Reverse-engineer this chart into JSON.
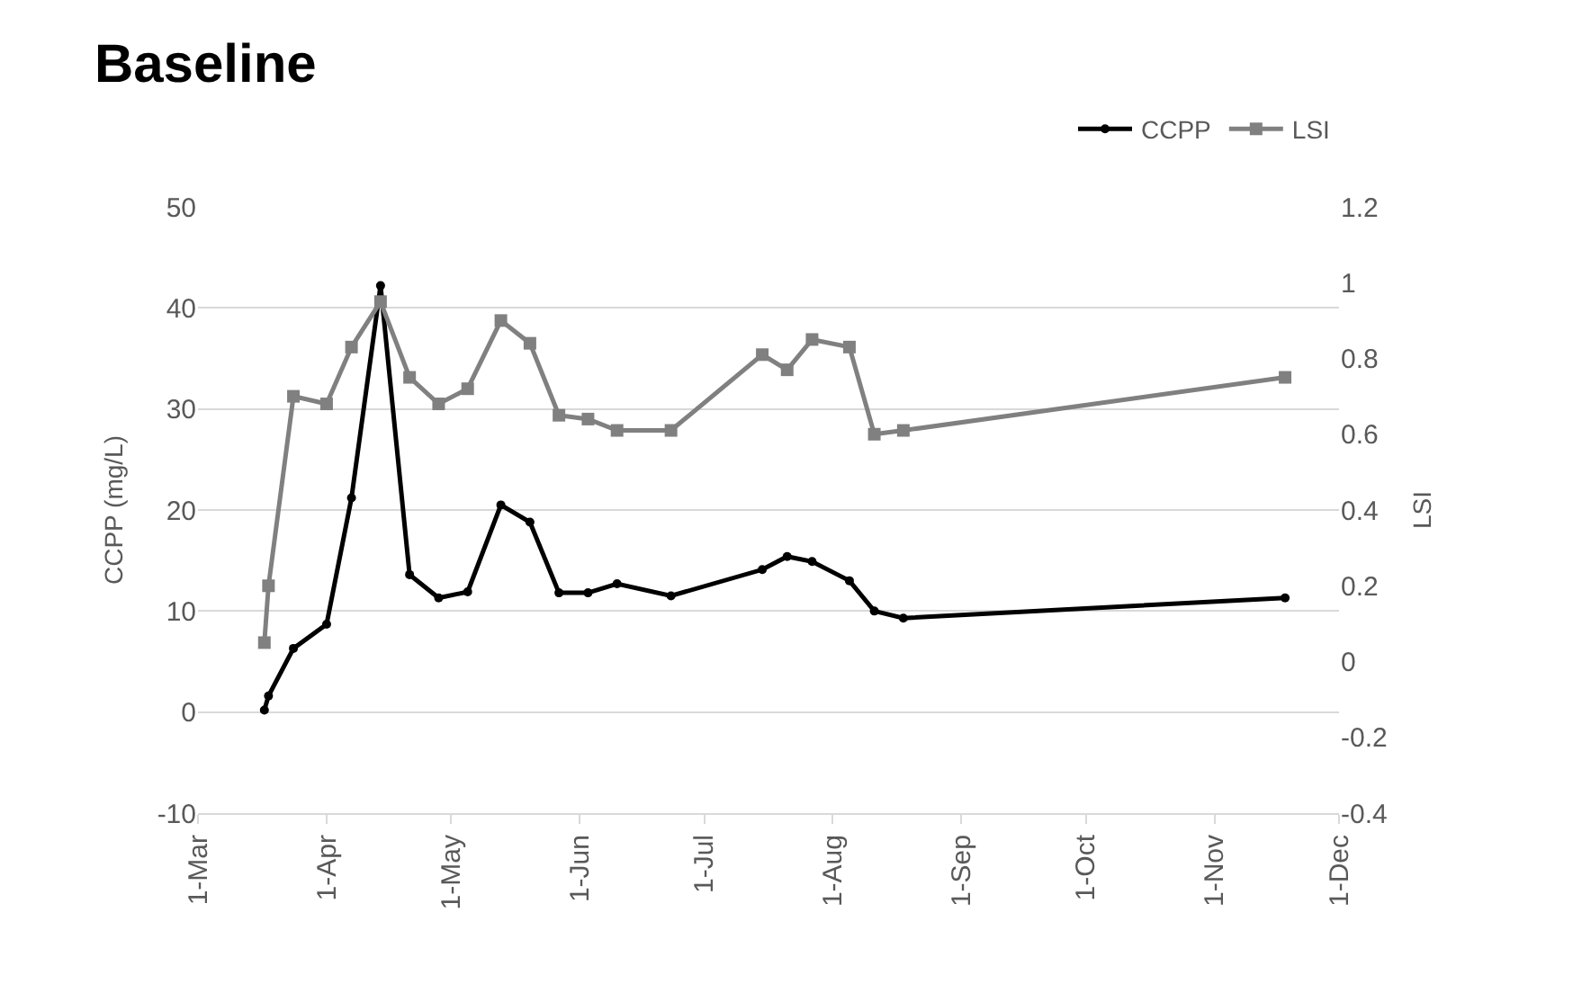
{
  "chart_data": {
    "type": "line",
    "title": "Baseline",
    "ylabel": "CCPP (mg/L)",
    "y2label": "LSI",
    "x": [
      "--03-17",
      "--03-18",
      "--03-24",
      "--04-01",
      "--04-07",
      "--04-14",
      "--04-21",
      "--04-28",
      "--05-05",
      "--05-13",
      "--05-20",
      "--05-27",
      "--06-03",
      "--06-10",
      "--06-23",
      "--07-15",
      "--07-21",
      "--07-27",
      "--08-05",
      "--08-11",
      "--08-18",
      "--11-18"
    ],
    "series": [
      {
        "name": "CCPP",
        "color": "#000000",
        "marker": "circle",
        "values": [
          0.2,
          1.6,
          6.3,
          8.7,
          21.2,
          42.2,
          13.6,
          11.3,
          11.9,
          20.5,
          18.8,
          11.8,
          11.8,
          12.7,
          11.5,
          14.1,
          15.4,
          14.9,
          13.0,
          10.0,
          9.3,
          11.3
        ]
      },
      {
        "name": "LSI",
        "color": "#808080",
        "marker": "square",
        "axis": "y2",
        "values": [
          0.05,
          0.2,
          0.7,
          0.68,
          0.83,
          0.95,
          0.75,
          0.68,
          0.72,
          0.9,
          0.84,
          0.65,
          0.64,
          0.61,
          0.61,
          0.81,
          0.77,
          0.85,
          0.83,
          0.6,
          0.61,
          0.75
        ]
      }
    ],
    "xlim": [
      "--03-01",
      "--12-01"
    ],
    "xticks": [
      {
        "value": "--03-01",
        "label": "1-Mar"
      },
      {
        "value": "--04-01",
        "label": "1-Apr"
      },
      {
        "value": "--05-01",
        "label": "1-May"
      },
      {
        "value": "--06-01",
        "label": "1-Jun"
      },
      {
        "value": "--07-01",
        "label": "1-Jul"
      },
      {
        "value": "--08-01",
        "label": "1-Aug"
      },
      {
        "value": "--09-01",
        "label": "1-Sep"
      },
      {
        "value": "--10-01",
        "label": "1-Oct"
      },
      {
        "value": "--11-01",
        "label": "1-Nov"
      },
      {
        "value": "--12-01",
        "label": "1-Dec"
      }
    ],
    "ylim": [
      -10,
      50
    ],
    "yticks": [
      -10,
      0,
      10,
      20,
      30,
      40,
      50
    ],
    "y2lim": [
      -0.4,
      1.2
    ],
    "y2ticks": [
      -0.4,
      -0.2,
      0,
      0.2,
      0.4,
      0.6,
      0.8,
      1,
      1.2
    ],
    "grid": "y",
    "legend": "top right",
    "line_style": "solid"
  }
}
